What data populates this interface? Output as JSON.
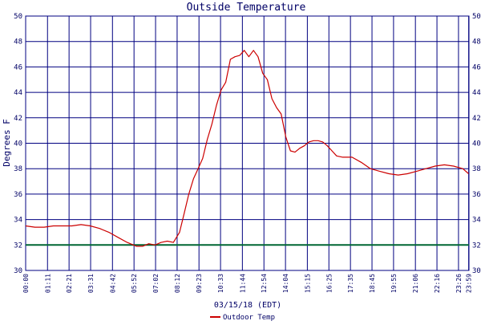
{
  "chart_data": {
    "type": "line",
    "title": "Outside Temperature",
    "ylabel": "Degrees F",
    "xlabel": "03/15/18 (EDT)",
    "ylim": [
      30,
      50
    ],
    "y_ticks": [
      30,
      32,
      34,
      36,
      38,
      40,
      42,
      44,
      46,
      48,
      50
    ],
    "x_tick_labels": [
      "00:00",
      "01:11",
      "02:21",
      "03:31",
      "04:42",
      "05:52",
      "07:02",
      "08:12",
      "09:23",
      "10:33",
      "11:44",
      "12:54",
      "14:04",
      "15:15",
      "16:25",
      "17:35",
      "18:45",
      "19:55",
      "21:06",
      "22:16",
      "23:26",
      "23:59"
    ],
    "x_tick_minutes": [
      0,
      71,
      141,
      211,
      282,
      352,
      422,
      492,
      563,
      633,
      704,
      774,
      844,
      915,
      985,
      1055,
      1125,
      1195,
      1266,
      1336,
      1406,
      1439
    ],
    "x_range_minutes": [
      0,
      1440
    ],
    "grid": true,
    "legend": "bottom-left",
    "reference_line": {
      "value": 32,
      "color": "#006633"
    },
    "series": [
      {
        "name": "Outdoor Temp",
        "color": "#cc0000",
        "x_minutes": [
          0,
          30,
          60,
          90,
          120,
          150,
          180,
          210,
          240,
          270,
          300,
          330,
          360,
          380,
          400,
          420,
          440,
          460,
          480,
          500,
          515,
          530,
          545,
          560,
          575,
          590,
          605,
          620,
          635,
          650,
          665,
          680,
          695,
          710,
          725,
          740,
          755,
          770,
          785,
          800,
          815,
          830,
          845,
          860,
          875,
          890,
          905,
          920,
          935,
          950,
          965,
          980,
          995,
          1010,
          1030,
          1060,
          1090,
          1120,
          1150,
          1180,
          1210,
          1240,
          1270,
          1300,
          1330,
          1360,
          1390,
          1420,
          1439
        ],
        "values": [
          33.5,
          33.4,
          33.4,
          33.5,
          33.5,
          33.5,
          33.6,
          33.5,
          33.3,
          33.0,
          32.6,
          32.2,
          31.9,
          31.9,
          32.1,
          32.0,
          32.2,
          32.3,
          32.2,
          33.0,
          34.5,
          36.0,
          37.2,
          38.0,
          38.8,
          40.3,
          41.5,
          43.0,
          44.2,
          44.8,
          46.6,
          46.8,
          46.9,
          47.3,
          46.8,
          47.3,
          46.8,
          45.5,
          45.0,
          43.5,
          42.8,
          42.3,
          40.5,
          39.4,
          39.3,
          39.6,
          39.8,
          40.1,
          40.2,
          40.2,
          40.1,
          39.8,
          39.4,
          39.0,
          38.9,
          38.9,
          38.5,
          38.0,
          37.8,
          37.6,
          37.5,
          37.6,
          37.8,
          38.0,
          38.2,
          38.3,
          38.2,
          38.0,
          37.6
        ]
      }
    ]
  }
}
